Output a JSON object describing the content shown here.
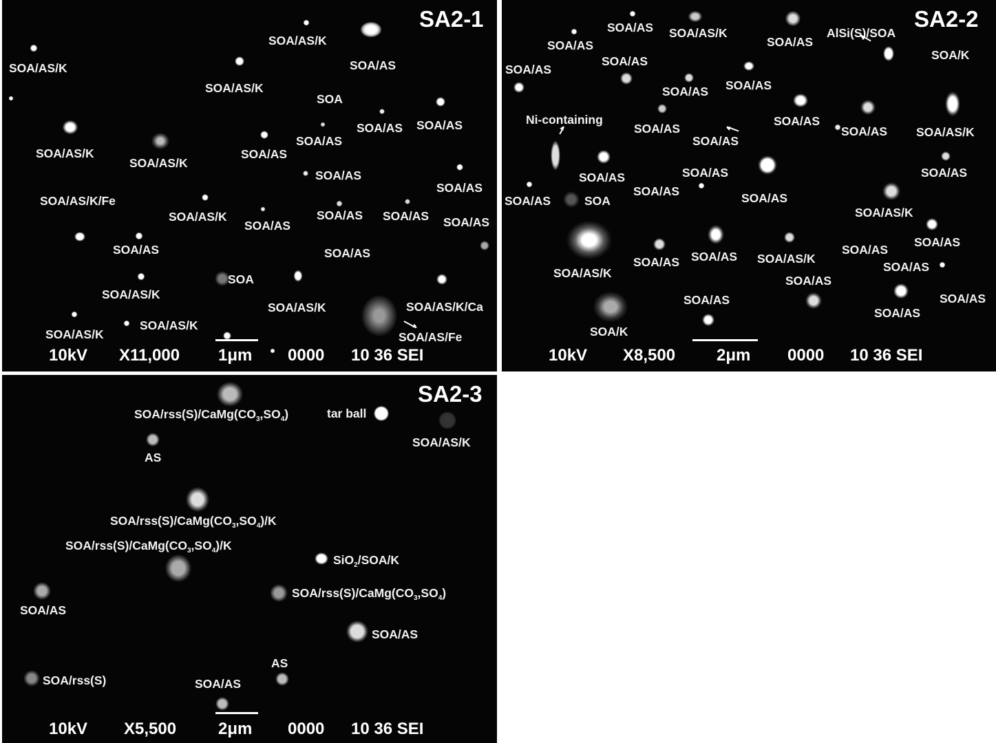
{
  "panels": [
    {
      "id": "p1",
      "title": "SA2-1",
      "footer": {
        "voltage": "10kV",
        "magnification": "X11,000",
        "scale": "1μm",
        "code": "0000",
        "mode": "10 36 SEI"
      },
      "labels": [
        "SOA/AS/K",
        "SOA/AS",
        "SOA/AS/K",
        "SOA/AS/K",
        "SOA",
        "SOA/AS",
        "SOA/AS",
        "SOA/AS/K",
        "SOA/AS",
        "SOA/AS/K",
        "SOA/AS",
        "SOA/AS",
        "SOA/AS",
        "SOA/AS/K/Fe",
        "SOA/AS/K",
        "SOA/AS",
        "SOA/AS",
        "SOA/AS",
        "SOA/AS",
        "SOA/AS",
        "SOA/AS",
        "SOA",
        "SOA/AS/K",
        "SOA/AS/K",
        "SOA/AS/K/Ca",
        "SOA/AS/K",
        "SOA/AS/K",
        "SOA/AS/Fe"
      ]
    },
    {
      "id": "p2",
      "title": "SA2-2",
      "footer": {
        "voltage": "10kV",
        "magnification": "X8,500",
        "scale": "2μm",
        "code": "0000",
        "mode": "10 36 SEI"
      },
      "labels": [
        "SOA/AS",
        "SOA/AS/K",
        "SOA/AS",
        "SOA/AS",
        "AlSi(S)/SOA",
        "SOA/AS",
        "SOA/K",
        "SOA/AS",
        "SOA/AS",
        "SOA/AS",
        "Ni-containing",
        "SOA/AS",
        "SOA/AS",
        "SOA/AS",
        "SOA/AS",
        "SOA/AS/K",
        "SOA/AS",
        "SOA/AS",
        "SOA/AS",
        "SOA/AS",
        "SOA/AS",
        "SOA",
        "SOA/AS",
        "SOA/AS/K",
        "SOA/AS",
        "SOA/AS",
        "SOA/AS",
        "SOA/AS/K",
        "SOA/AS",
        "SOA/AS/K",
        "SOA/AS",
        "SOA/AS",
        "SOA/AS",
        "SOA/AS",
        "SOA/AS",
        "SOA/K"
      ]
    },
    {
      "id": "p3",
      "title": "SA2-3",
      "footer": {
        "voltage": "10kV",
        "magnification": "X5,500",
        "scale": "2μm",
        "code": "0000",
        "mode": "10 36 SEI"
      },
      "labels": [
        "tar ball",
        "SOA/AS/K",
        "AS",
        "SOA/AS",
        "SOA/AS",
        "SOA/rss(S)",
        "AS",
        "SOA/AS"
      ],
      "formula_labels": [
        {
          "prefix": "SOA/rss(S)/CaMg(CO",
          "sub1": "3",
          "mid": ",SO",
          "sub2": "4",
          "suffix": ")"
        },
        {
          "prefix": "SOA/rss(S)/CaMg(CO",
          "sub1": "3",
          "mid": ",SO",
          "sub2": "4",
          "suffix": ")/K"
        },
        {
          "prefix": "SOA/rss(S)/CaMg(CO",
          "sub1": "3",
          "mid": ",SO",
          "sub2": "4",
          "suffix": ")/K"
        },
        {
          "prefix": "SiO",
          "sub1": "2",
          "mid": "/SOA/K",
          "sub2": "",
          "suffix": ""
        },
        {
          "prefix": "SOA/rss(S)/CaMg(CO",
          "sub1": "3",
          "mid": ",SO",
          "sub2": "4",
          "suffix": ")"
        }
      ]
    }
  ]
}
